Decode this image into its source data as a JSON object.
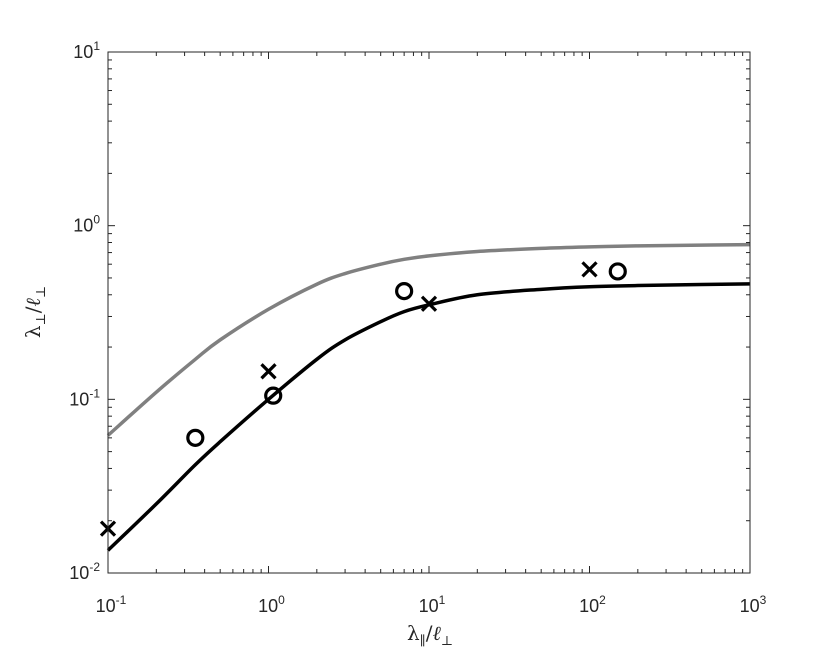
{
  "chart_data": {
    "type": "scatter",
    "title": "",
    "xlabel": {
      "main": "λ",
      "main_sub": "∥",
      "slash": "/",
      "denom": "ℓ",
      "denom_sub": "⊥"
    },
    "ylabel": {
      "main": "λ",
      "main_sub": "⊥",
      "slash": "/",
      "denom": "ℓ",
      "denom_sub": "⊥"
    },
    "xscale": "log",
    "yscale": "log",
    "xlim": [
      0.1,
      1000
    ],
    "ylim": [
      0.01,
      10
    ],
    "grid": false,
    "x_ticks": [
      {
        "value": 0.1,
        "base": "10",
        "exp": "-1"
      },
      {
        "value": 1,
        "base": "10",
        "exp": "0"
      },
      {
        "value": 10,
        "base": "10",
        "exp": "1"
      },
      {
        "value": 100,
        "base": "10",
        "exp": "2"
      },
      {
        "value": 1000,
        "base": "10",
        "exp": "3"
      }
    ],
    "y_ticks": [
      {
        "value": 0.01,
        "base": "10",
        "exp": "-2"
      },
      {
        "value": 0.1,
        "base": "10",
        "exp": "-1"
      },
      {
        "value": 1,
        "base": "10",
        "exp": "0"
      },
      {
        "value": 10,
        "base": "10",
        "exp": "1"
      }
    ],
    "series": [
      {
        "kind": "line",
        "color": "#808080",
        "x": [
          0.1,
          0.2,
          0.35,
          0.5,
          1,
          2,
          3,
          5,
          7,
          10,
          20,
          50,
          100,
          200,
          500,
          1000
        ],
        "y": [
          0.062,
          0.11,
          0.17,
          0.22,
          0.33,
          0.46,
          0.53,
          0.6,
          0.64,
          0.67,
          0.71,
          0.74,
          0.755,
          0.765,
          0.773,
          0.778
        ]
      },
      {
        "kind": "line",
        "color": "#000000",
        "x": [
          0.1,
          0.2,
          0.35,
          0.5,
          1,
          2,
          3,
          5,
          7,
          10,
          20,
          50,
          100,
          200,
          500,
          1000
        ],
        "y": [
          0.0135,
          0.025,
          0.042,
          0.057,
          0.1,
          0.17,
          0.22,
          0.28,
          0.32,
          0.35,
          0.4,
          0.43,
          0.445,
          0.452,
          0.458,
          0.462
        ]
      },
      {
        "kind": "marker",
        "marker": "x",
        "color": "#000000",
        "x": [
          0.1,
          1,
          10,
          100
        ],
        "y": [
          0.018,
          0.145,
          0.355,
          0.56
        ]
      },
      {
        "kind": "marker",
        "marker": "o",
        "color": "#000000",
        "x": [
          0.35,
          1.07,
          7,
          150
        ],
        "y": [
          0.06,
          0.105,
          0.42,
          0.545
        ]
      }
    ]
  }
}
